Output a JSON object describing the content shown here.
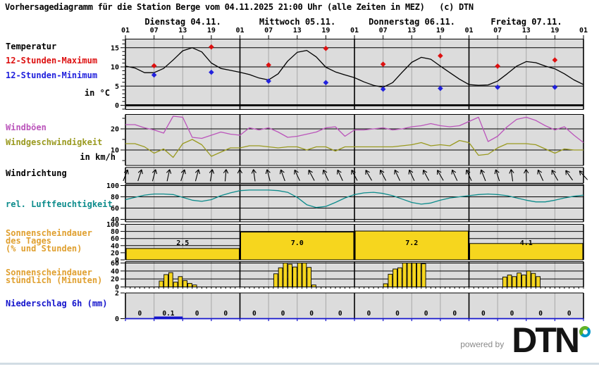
{
  "title": "Vorhersagediagramm für die Station Berge vom 04.11.2025 21:00 Uhr (alle Zeiten in MEZ)   (c) DTN",
  "x_axis": {
    "days": [
      "Dienstag 04.11.",
      "Mittwoch 05.11.",
      "Donnerstag 06.11.",
      "Freitag 07.11."
    ],
    "hour_labels": [
      "01",
      "07",
      "13",
      "19"
    ],
    "closing_label": "01"
  },
  "colors": {
    "max": "#dd1111",
    "min": "#2222dd",
    "curve": "#000000",
    "gusts": "#bb55bb",
    "speed": "#9a9a20",
    "humidity": "#0d8c8c",
    "sunshine": "#e0a030",
    "sun_bar": "#f6d61e",
    "precip": "#1515cc",
    "panel_bg": "#dcdcdc",
    "grid_minor": "#a8a8a8",
    "powered_by": "#8a8a8a",
    "footer_line": "#d2dde4",
    "dtn_green": "#61b329",
    "dtn_blue": "#0095c8"
  },
  "footer": {
    "powered_by": "powered by",
    "brand": "DTN"
  },
  "chart_data": [
    {
      "id": "temperature",
      "type": "line",
      "label": "Temperatur",
      "series_labels": {
        "max": "12-Stunden-Maximum",
        "min": "12-Stunden-Minimum"
      },
      "unit_label": "in °C",
      "ylim": [
        -1,
        17
      ],
      "yticks": [
        0,
        5,
        10,
        15
      ],
      "hours_step": 2,
      "curve": [
        10.2,
        9.7,
        8.5,
        8.5,
        9.6,
        11.8,
        14.2,
        15.0,
        13.9,
        11.0,
        9.6,
        9.1,
        8.6,
        8.0,
        7.1,
        6.6,
        8.2,
        11.5,
        13.8,
        14.3,
        12.6,
        9.9,
        8.7,
        7.9,
        7.2,
        6.1,
        5.2,
        4.7,
        5.9,
        8.6,
        11.2,
        12.5,
        12.0,
        10.2,
        8.5,
        6.8,
        5.4,
        5.2,
        5.3,
        6.3,
        8.2,
        10.2,
        11.4,
        11.1,
        10.2,
        9.5,
        8.2,
        6.6,
        5.4
      ],
      "max_points": {
        "hours": [
          6,
          18,
          30,
          42,
          54,
          66,
          78,
          90
        ],
        "values": [
          10.3,
          15.2,
          10.5,
          14.8,
          10.7,
          12.9,
          10.2,
          11.8
        ]
      },
      "min_points": {
        "hours": [
          6,
          18,
          30,
          42,
          54,
          66,
          78,
          90
        ],
        "values": [
          7.9,
          8.6,
          6.3,
          5.9,
          4.2,
          4.4,
          4.7,
          4.7
        ]
      }
    },
    {
      "id": "wind",
      "type": "line",
      "gusts_label": "Windböen",
      "speed_label": "Windgeschwindigkeit",
      "unit_label": "in km/h",
      "ylim": [
        2,
        27
      ],
      "yticks": [
        10,
        20
      ],
      "hours_step": 2,
      "gusts": [
        22,
        22,
        20.5,
        19.5,
        18,
        26,
        25.5,
        16,
        15.5,
        17,
        18.5,
        17.5,
        17,
        20.5,
        19.5,
        20.5,
        18.5,
        16,
        16.5,
        17.5,
        18.5,
        20.5,
        21,
        16.5,
        19.5,
        19.5,
        20,
        20.5,
        19.5,
        20,
        21,
        21.5,
        22.5,
        21.5,
        21,
        21.5,
        23.5,
        25.5,
        14,
        16.5,
        21,
        24.5,
        25.5,
        24,
        21.5,
        19.5,
        21,
        17,
        13.5
      ],
      "speed": [
        13,
        13,
        11.5,
        8.5,
        10.5,
        6.5,
        13,
        15,
        12.5,
        7,
        9,
        11,
        11,
        12,
        12,
        11.5,
        11,
        11.5,
        11.5,
        10,
        11.5,
        11.5,
        9.5,
        11.5,
        11.5,
        11.5,
        11.5,
        11.5,
        11.5,
        12,
        12.5,
        13.5,
        12,
        12.5,
        12,
        14.5,
        13.5,
        7.5,
        8,
        11,
        13,
        13,
        13,
        12.5,
        10.5,
        8.5,
        10.5,
        10,
        10
      ]
    },
    {
      "id": "wind_direction",
      "type": "arrows",
      "label": "Windrichtung",
      "hours_step": 3,
      "angles": [
        22,
        18,
        15,
        12,
        18,
        15,
        10,
        5,
        -2,
        -8,
        -15,
        -20,
        -25,
        -28,
        -25,
        -25,
        -28,
        -30,
        -28,
        -25,
        -25,
        -28,
        -30,
        -25,
        -25,
        -22,
        -18,
        -8,
        -2,
        -25,
        -30,
        -35,
        -42
      ]
    },
    {
      "id": "humidity",
      "type": "line",
      "label": "rel. Luftfeuchtigkeit",
      "ylim": [
        36,
        102
      ],
      "yticks": [
        40,
        60,
        80,
        100
      ],
      "hours_step": 2,
      "values": [
        75,
        79,
        83,
        85,
        85,
        84,
        79,
        74,
        72,
        75,
        82,
        87,
        91,
        92,
        92,
        92,
        91,
        88,
        79,
        66,
        61,
        63,
        70,
        78,
        84,
        87,
        88,
        86,
        82,
        76,
        70,
        67,
        69,
        74,
        78,
        80,
        82,
        84,
        85,
        84,
        82,
        78,
        74,
        71,
        71,
        74,
        78,
        81,
        83
      ]
    },
    {
      "id": "sunshine_daily",
      "type": "bar",
      "label_lines": [
        "Sonnenscheindauer",
        "des Tages",
        "(% und Stunden)"
      ],
      "ylim": [
        0,
        100
      ],
      "yticks": [
        0,
        20,
        40,
        60,
        80,
        100
      ],
      "value_labels": [
        "2.5",
        "7.0",
        "7.2",
        "4.1"
      ],
      "percent": [
        32,
        78,
        81,
        46
      ]
    },
    {
      "id": "sunshine_hourly",
      "type": "bar",
      "label_lines": [
        "Sonnenscheindauer",
        "stündlich (Minuten)"
      ],
      "ylim": [
        0,
        63
      ],
      "yticks": [
        0,
        20,
        40,
        60
      ],
      "bars": [
        {
          "day": 0,
          "start_hour": 8,
          "minutes": [
            15,
            31,
            36,
            12,
            26,
            16,
            9,
            5
          ]
        },
        {
          "day": 1,
          "start_hour": 8,
          "minutes": [
            33,
            48,
            60,
            57,
            50,
            60,
            60,
            49,
            5
          ]
        },
        {
          "day": 2,
          "start_hour": 7,
          "minutes": [
            8,
            32,
            45,
            48,
            60,
            60,
            60,
            60,
            58
          ]
        },
        {
          "day": 3,
          "start_hour": 8,
          "minutes": [
            25,
            30,
            26,
            35,
            30,
            40,
            34,
            26
          ]
        }
      ]
    },
    {
      "id": "precipitation",
      "type": "bar",
      "label": "Niederschlag 6h (mm)",
      "ylim": [
        0,
        2
      ],
      "ytick_labels": [
        "2",
        "0"
      ],
      "value_labels": [
        "0",
        "0.1",
        "0",
        "0",
        "0",
        "0",
        "0",
        "0",
        "0",
        "0",
        "0",
        "0",
        "0",
        "0",
        "0",
        "0"
      ],
      "values_mm": [
        0,
        0.1,
        0,
        0,
        0,
        0,
        0,
        0,
        0,
        0,
        0,
        0,
        0,
        0,
        0,
        0
      ]
    }
  ]
}
